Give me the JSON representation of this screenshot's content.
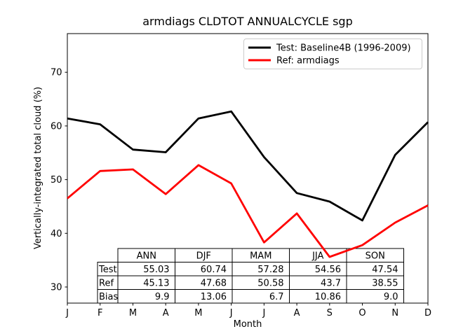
{
  "figure": {
    "title": "armdiags CLDTOT ANNUALCYCLE sgp",
    "xlabel": "Month",
    "ylabel": "Vertically-integrated total cloud (%)"
  },
  "legend": {
    "entries": [
      {
        "label": "Test: Baseline4B (1996-2009)",
        "color": "#000000"
      },
      {
        "label": "Ref: armdiags",
        "color": "#ff0000"
      }
    ]
  },
  "chart_data": {
    "type": "line",
    "title": "armdiags CLDTOT ANNUALCYCLE sgp",
    "xlabel": "Month",
    "ylabel": "Vertically-integrated total cloud (%)",
    "x_tick_labels": [
      "J",
      "F",
      "M",
      "A",
      "M",
      "J",
      "J",
      "A",
      "S",
      "O",
      "N",
      "D"
    ],
    "y_ticks": [
      30,
      40,
      50,
      60,
      70
    ],
    "ylim": [
      27.0,
      77.2
    ],
    "grid": false,
    "legend_position": "upper right",
    "series": [
      {
        "name": "Test: Baseline4B (1996-2009)",
        "color": "#000000",
        "values": [
          61.4,
          60.3,
          55.6,
          55.1,
          61.4,
          62.7,
          54.2,
          47.5,
          45.9,
          42.4,
          54.6,
          60.7
        ]
      },
      {
        "name": "Ref: armdiags",
        "color": "#ff0000",
        "values": [
          46.5,
          51.6,
          51.9,
          47.3,
          52.7,
          49.3,
          38.3,
          43.7,
          35.6,
          37.8,
          42.0,
          45.2
        ]
      }
    ],
    "stats_table": {
      "col_headers": [
        "ANN",
        "DJF",
        "MAM",
        "JJA",
        "SON"
      ],
      "rows": [
        {
          "label": "Test",
          "values": [
            "55.03",
            "60.74",
            "57.28",
            "54.56",
            "47.54"
          ]
        },
        {
          "label": "Ref",
          "values": [
            "45.13",
            "47.68",
            "50.58",
            "43.7",
            "38.55"
          ]
        },
        {
          "label": "Bias",
          "values": [
            "9.9",
            "13.06",
            "6.7",
            "10.86",
            "9.0"
          ]
        }
      ]
    }
  }
}
